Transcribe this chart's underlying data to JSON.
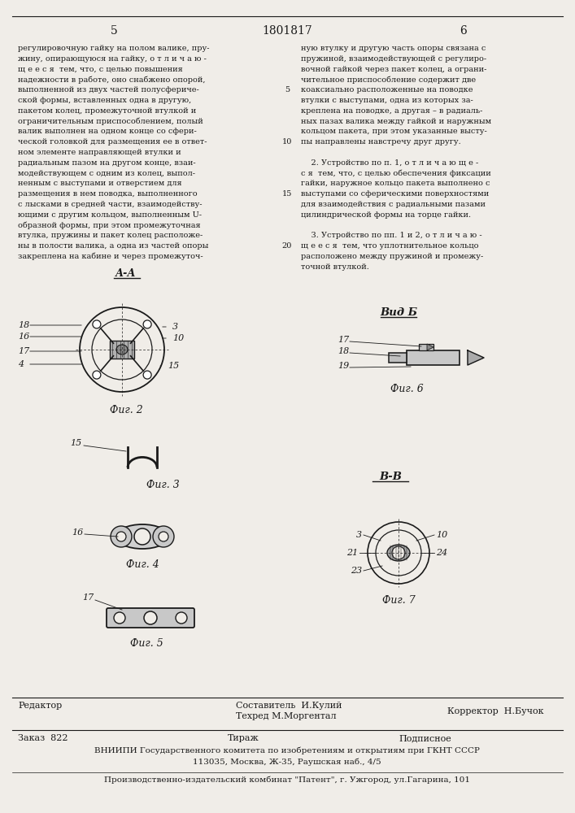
{
  "page_number_left": "5",
  "patent_number": "1801817",
  "page_number_right": "6",
  "bg_color": "#f0ede8",
  "text_color": "#1a1a1a",
  "left_column_text": [
    "регулировочную гайку на полом валике, пру-",
    "жину, опирающуюся на гайку, о т л и ч а ю -",
    "щ е е с я  тем, что, с целью повышения",
    "надежности в работе, оно снабжено опорой,",
    "выполненной из двух частей полусфериче-",
    "ской формы, вставленных одна в другую,",
    "пакетом колец, промежуточной втулкой и",
    "ограничительным приспособлением, полый",
    "валик выполнен на одном конце со сфери-",
    "ческой головкой для размещения ее в ответ-",
    "ном элементе направляющей втулки и",
    "радиальным пазом на другом конце, взаи-",
    "модействующем с одним из колец, выпол-",
    "ненным с выступами и отверстием для",
    "размещения в нем поводка, выполненного",
    "с лысками в средней части, взаимодейству-",
    "ющими с другим кольцом, выполненным U-",
    "образной формы, при этом промежуточная",
    "втулка, пружины и пакет колец расположе-",
    "ны в полости валика, а одна из частей опоры",
    "закреплена на кабине и через промежуточ-"
  ],
  "right_column_text": [
    "ную втулку и другую часть опоры связана с",
    "пружиной, взаимодействующей с регулиро-",
    "вочной гайкой через пакет колец, а ограни-",
    "чительное приспособление содержит две",
    "коаксиально расположенные на поводке",
    "втулки с выступами, одна из которых за-",
    "креплена на поводке, а другая – в радиаль-",
    "ных пазах валика между гайкой и наружным",
    "кольцом пакета, при этом указанные высту-",
    "пы направлены навстречу друг другу.",
    "",
    "    2. Устройство по п. 1, о т л и ч а ю щ е -",
    "с я  тем, что, с целью обеспечения фиксации",
    "гайки, наружное кольцо пакета выполнено с",
    "выступами со сферическими поверхностями",
    "для взаимодействия с радиальными пазами",
    "цилиндрической формы на торце гайки.",
    "",
    "    3. Устройство по пп. 1 и 2, о т л и ч а ю -",
    "щ е е с я  тем, что уплотнительное кольцо",
    "расположено между пружиной и промежу-",
    "точной втулкой."
  ],
  "footer_line1_left": "Редактор",
  "footer_line1_center1": "Составитель  И.Кулий",
  "footer_line2_center": "Техред М.Моргентал",
  "footer_corrector": "Корректор  Н.Бучок",
  "footer_order": "Заказ  822",
  "footer_tirazh": "Тираж",
  "footer_podpisnoe": "Подписное",
  "footer_vniipи": "ВНИИПИ Государственного комитета по изобретениям и открытиям при ГКНТ СССР",
  "footer_address": "113035, Москва, Ж-35, Раушская наб., 4/5",
  "footer_publisher": "Производственно-издательский комбинат \"Патент\", г. Ужгород, ул.Гагарина, 101"
}
